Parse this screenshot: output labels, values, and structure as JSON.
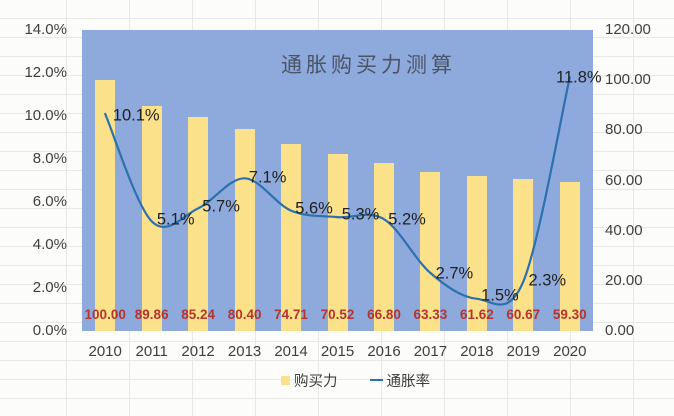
{
  "chart_data": {
    "type": "bar+line combo",
    "title": "通胀购买力测算",
    "categories": [
      "2010",
      "2011",
      "2012",
      "2013",
      "2014",
      "2015",
      "2016",
      "2017",
      "2018",
      "2019",
      "2020"
    ],
    "series": [
      {
        "name": "购买力",
        "type": "bar",
        "axis": "right",
        "color": "#fbe18a",
        "values": [
          100.0,
          89.86,
          85.24,
          80.4,
          74.71,
          70.52,
          66.8,
          63.33,
          61.62,
          60.67,
          59.3
        ],
        "labels": [
          "100.00",
          "89.86",
          "85.24",
          "80.40",
          "74.71",
          "70.52",
          "66.80",
          "63.33",
          "61.62",
          "60.67",
          "59.30"
        ],
        "label_color": "#b43530"
      },
      {
        "name": "通胀率",
        "type": "line",
        "axis": "left",
        "color": "#2c70ad",
        "values": [
          10.1,
          5.1,
          5.7,
          7.1,
          5.6,
          5.3,
          5.2,
          2.7,
          1.5,
          2.3,
          11.8
        ],
        "labels": [
          "10.1%",
          "5.1%",
          "5.7%",
          "7.1%",
          "5.6%",
          "5.3%",
          "5.2%",
          "2.7%",
          "1.5%",
          "2.3%",
          "11.8%"
        ],
        "label_color": "#212121"
      }
    ],
    "left_axis": {
      "min": 0,
      "max": 14,
      "ticks": [
        "14.0%",
        "12.0%",
        "10.0%",
        "8.0%",
        "6.0%",
        "4.0%",
        "2.0%",
        "0.0%"
      ]
    },
    "right_axis": {
      "min": 0,
      "max": 120,
      "ticks": [
        "120.00",
        "100.00",
        "80.00",
        "60.00",
        "40.00",
        "20.00",
        "0.00"
      ]
    },
    "plot_background": "#8ea9db",
    "legend_position": "bottom",
    "grid": "off"
  }
}
